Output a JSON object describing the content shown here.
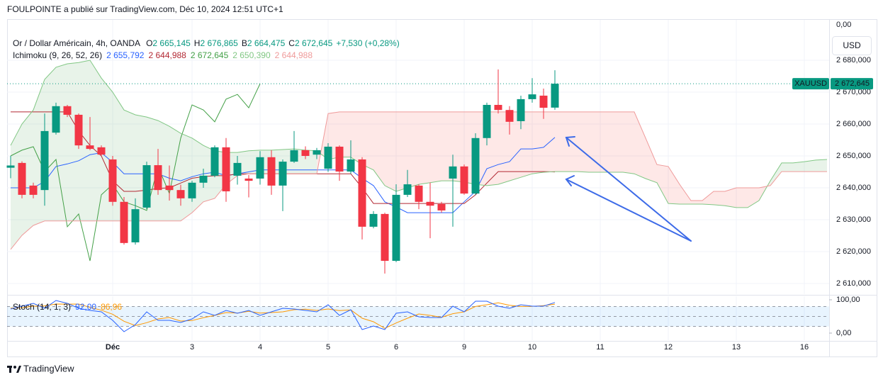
{
  "header": {
    "publisher": "FOULPOINTE a publié sur TradingView.com, Déc 10, 2024 12:51 UTC+1",
    "currency_button": "USD",
    "price_axis_top": "0,00",
    "footer": "TradingView"
  },
  "chart_data": [
    {
      "type": "candlestick",
      "title": "Or / Dollar Américain, 4h, OANDA",
      "legend_values": [
        {
          "label": "O",
          "text": "2 665,145"
        },
        {
          "label": "H",
          "text": "2 676,865"
        },
        {
          "label": "B",
          "text": "2 664,475"
        },
        {
          "label": "C",
          "text": "2 672,645"
        }
      ],
      "change": "+7,530 (+0,28%)",
      "up_color": "#089981",
      "down_color": "#f23645",
      "x": [
        0,
        1,
        2,
        3,
        4,
        5,
        6,
        7,
        8,
        9,
        10,
        11,
        12,
        13,
        14,
        15,
        16,
        17,
        18,
        19,
        20,
        21,
        22,
        23,
        24,
        25,
        26,
        27,
        28,
        29,
        30,
        31,
        32,
        33,
        34,
        35,
        36,
        37,
        38,
        39,
        40,
        41,
        42,
        43,
        44,
        45,
        46,
        47,
        48
      ],
      "open": [
        2646.3,
        2647.8,
        2640.7,
        2639.3,
        2657.3,
        2665.6,
        2662.9,
        2653.3,
        2652.7,
        2648.9,
        2635.6,
        2622.9,
        2633.8,
        2647.1,
        2640.7,
        2639.3,
        2636.7,
        2641.6,
        2643.8,
        2652.7,
        2643.8,
        2642.9,
        2642.9,
        2649.6,
        2640.7,
        2648.2,
        2651.8,
        2650.4,
        2646,
        2652.9,
        2645.1,
        2648.9,
        2627.8,
        2631.8,
        2617.1,
        2637.8,
        2640.7,
        2635.6,
        2634.9,
        2642.9,
        2646.7,
        2638.2,
        2655.6,
        2666,
        2664.4,
        2660.9,
        2667.8,
        2668.9,
        2665.145
      ],
      "high": [
        2650,
        2648.3,
        2641.6,
        2663.3,
        2666.7,
        2666,
        2663.3,
        2662.2,
        2653.3,
        2650,
        2637.1,
        2636.7,
        2648.2,
        2652.2,
        2647,
        2641,
        2642.2,
        2646,
        2653.3,
        2655.6,
        2650,
        2644,
        2651.5,
        2651.8,
        2648.9,
        2657.8,
        2653,
        2652.5,
        2654,
        2653.3,
        2654.9,
        2649.6,
        2632.7,
        2632.2,
        2641.1,
        2645.6,
        2641.1,
        2641.6,
        2635.6,
        2650.4,
        2647.3,
        2657.1,
        2666.7,
        2677.1,
        2665.6,
        2668.9,
        2674.4,
        2671.1,
        2676.865
      ],
      "low": [
        2643,
        2636.7,
        2636.7,
        2634.4,
        2656.7,
        2662.2,
        2652.2,
        2651.8,
        2650,
        2634.4,
        2622.2,
        2622.2,
        2633.3,
        2637.8,
        2636,
        2634.4,
        2635.6,
        2640,
        2643.3,
        2635.6,
        2641,
        2637,
        2641,
        2637.8,
        2632.7,
        2647.8,
        2649,
        2649,
        2645,
        2642.2,
        2644.4,
        2623.8,
        2627.3,
        2613.1,
        2616.7,
        2637.1,
        2633.3,
        2624.2,
        2632.2,
        2627.8,
        2637.8,
        2637.8,
        2653.3,
        2663.3,
        2656.7,
        2658.4,
        2666.7,
        2661.6,
        2664.475
      ],
      "close": [
        2647,
        2637.8,
        2637.8,
        2657.8,
        2665.6,
        2662.9,
        2653.3,
        2652.2,
        2650.4,
        2635.6,
        2622.7,
        2633.3,
        2647.1,
        2639.3,
        2639.3,
        2636.7,
        2641.6,
        2643.8,
        2652.7,
        2638.9,
        2647.8,
        2642.2,
        2649.6,
        2640.7,
        2648.2,
        2651.8,
        2650,
        2651.8,
        2652.9,
        2645.1,
        2648.9,
        2627.8,
        2631.8,
        2617.1,
        2637.8,
        2641.1,
        2635.6,
        2634.4,
        2632.9,
        2646.7,
        2638.2,
        2655.6,
        2666,
        2664.4,
        2660.7,
        2667.8,
        2669.3,
        2665.1,
        2672.645
      ],
      "xlim": [
        -0.3125,
        72.1875
      ],
      "xticks": [
        {
          "value": 9,
          "label": "Déc"
        },
        {
          "value": 16,
          "label": "3"
        },
        {
          "value": 22,
          "label": "4"
        },
        {
          "value": 28,
          "label": "5"
        },
        {
          "value": 34,
          "label": "6"
        },
        {
          "value": 40,
          "label": "9"
        },
        {
          "value": 46,
          "label": "10"
        },
        {
          "value": 52,
          "label": "11"
        },
        {
          "value": 58,
          "label": "12"
        },
        {
          "value": 64,
          "label": "13"
        },
        {
          "value": 70,
          "label": "16"
        }
      ],
      "ylim": [
        2606.667,
        2692.667
      ],
      "yticks": [
        {
          "value": 2610,
          "label": "2 610,000"
        },
        {
          "value": 2620,
          "label": "2 620,000"
        },
        {
          "value": 2630,
          "label": "2 630,000"
        },
        {
          "value": 2640,
          "label": "2 640,000"
        },
        {
          "value": 2650,
          "label": "2 650,000"
        },
        {
          "value": 2660,
          "label": "2 660,000"
        },
        {
          "value": 2670,
          "label": "2 670,000"
        },
        {
          "value": 2680,
          "label": "2 680,000"
        }
      ],
      "grid": true,
      "last_price": {
        "symbol": "XAUUSD",
        "value": 2672.645,
        "label": "2 672,645",
        "color": "#089981"
      },
      "indicator": {
        "name": "Ichimoku (9, 26, 52, 26)",
        "legend_values": [
          "2 655,792",
          "2 644,988",
          "2 672,645",
          "2 650,390",
          "2 644,988"
        ],
        "cloud_up_color": "rgba(67,160,71,0.12)",
        "cloud_down_color": "rgba(244,67,54,0.12)",
        "x": [
          0,
          1,
          2,
          3,
          4,
          5,
          6,
          7,
          8,
          9,
          10,
          11,
          12,
          13,
          14,
          15,
          16,
          17,
          18,
          19,
          20,
          21,
          22,
          23,
          24,
          25,
          26,
          27,
          28,
          29,
          30,
          31,
          32,
          33,
          34,
          35,
          36,
          37,
          38,
          39,
          40,
          41,
          42,
          43,
          44,
          45,
          46,
          47,
          48,
          49,
          50,
          51,
          52,
          53,
          54,
          55,
          56,
          57,
          58,
          59,
          60,
          61,
          62,
          63,
          64,
          65,
          66,
          67,
          68,
          69,
          70,
          71,
          72
        ],
        "series": [
          {
            "color": "#2962ff",
            "values": [
              2640,
              2640,
              2640,
              2642,
              2646.7,
              2647.5,
              2648.5,
              2650.4,
              2651,
              2648,
              2644.4,
              2644.4,
              2644.4,
              2644.4,
              2643,
              2642.2,
              2643.5,
              2644.4,
              2644.9,
              2643.8,
              2644.4,
              2645,
              2645.6,
              2645.6,
              2645.6,
              2645.6,
              2645.6,
              2645.6,
              2645.6,
              2645.6,
              2645.6,
              2643,
              2640.7,
              2635.6,
              2634,
              2632.2,
              2632.2,
              2632.2,
              2632.2,
              2632.2,
              2635.6,
              2638.9,
              2646,
              2647.3,
              2648.2,
              2652.2,
              2652.2,
              2652.7,
              2655.792,
              null,
              null,
              null,
              null,
              null,
              null,
              null,
              null,
              null,
              null,
              null,
              null,
              null,
              null,
              null,
              null,
              null,
              null,
              null,
              null,
              null,
              null,
              null,
              null
            ]
          },
          {
            "color": "#b22833",
            "values": [
              2663.8,
              2663.8,
              2663.8,
              2663.8,
              2663.8,
              2663.8,
              2657.8,
              2653.3,
              2650,
              2642.2,
              2638.9,
              2638.9,
              2639.3,
              2639.8,
              2640,
              2641.5,
              2643,
              2643.5,
              2643.8,
              2643.8,
              2644.4,
              2644.4,
              2644.4,
              2644.4,
              2644.4,
              2644.4,
              2644.4,
              2644.4,
              2644.4,
              2644.4,
              2644.4,
              2640,
              2635.1,
              2635.1,
              2635.1,
              2635.1,
              2635.1,
              2635.1,
              2635.1,
              2635.1,
              2635.1,
              2637.8,
              2641.5,
              2645.1,
              2645.1,
              2645.1,
              2645.1,
              2645.1,
              2644.988,
              null,
              null,
              null,
              null,
              null,
              null,
              null,
              null,
              null,
              null,
              null,
              null,
              null,
              null,
              null,
              null,
              null,
              null,
              null,
              null,
              null,
              null,
              null,
              null
            ]
          },
          {
            "color": "#43a047",
            "values": [
              2650,
              2651.8,
              2652.9,
              2645.1,
              2648.9,
              2627.8,
              2631.8,
              2617.1,
              2637.8,
              2641.1,
              2635.6,
              2634.4,
              2632.9,
              2646.7,
              2638.2,
              2655.6,
              2666,
              2664.4,
              2660.7,
              2667.8,
              2669.3,
              2665.1,
              2672.645,
              null,
              null,
              null,
              null,
              null,
              null,
              null,
              null,
              null,
              null,
              null,
              null,
              null,
              null,
              null,
              null,
              null,
              null,
              null,
              null,
              null,
              null,
              null,
              null,
              null,
              null,
              null,
              null,
              null,
              null,
              null,
              null,
              null,
              null,
              null,
              null,
              null,
              null,
              null,
              null,
              null,
              null,
              null,
              null,
              null,
              null,
              null,
              null,
              null,
              null
            ]
          },
          {
            "color": "#81c784",
            "values": [
              2653.3,
              2660,
              2664.4,
              2674,
              2677.8,
              2678.9,
              2679.3,
              2680,
              2674.4,
              2670,
              2664.4,
              2662.9,
              2662.2,
              2661.1,
              2659.3,
              2657.1,
              2655.6,
              2653.3,
              2651.6,
              2651.1,
              2651.1,
              2651.6,
              2651.8,
              2651.8,
              2652,
              2652.2,
              2651.8,
              2651.6,
              2648.9,
              2649.6,
              2649.6,
              2647.3,
              2645.6,
              2640.7,
              2638.9,
              2640,
              2641.1,
              2641.6,
              2642.2,
              2642.2,
              2641.8,
              2641.1,
              2640.7,
              2641.1,
              2642.2,
              2643.3,
              2644.4,
              2644.9,
              2645.1,
              2645.1,
              2645.1,
              2644.9,
              2644.9,
              2644.9,
              2644.9,
              2644.4,
              2642.9,
              2641.6,
              2635.1,
              2634.9,
              2634.9,
              2634.9,
              2634.7,
              2634.4,
              2633.8,
              2633.8,
              2636,
              2642.2,
              2647.8,
              2647.8,
              2648.2,
              2648.7,
              2648.9
            ]
          },
          {
            "color": "#ef9a9a",
            "values": [
              2620.7,
              2625.1,
              2628.2,
              2629.6,
              2629.6,
              2629.6,
              2629.6,
              2629.6,
              2629.6,
              2629.6,
              2629.6,
              2629.6,
              2629.6,
              2629.6,
              2629.6,
              2629.6,
              2632.2,
              2635.6,
              2636.7,
              2641.1,
              2643.8,
              2644.4,
              2644.4,
              2644.4,
              2644.4,
              2644.4,
              2644.4,
              2644.4,
              2663.3,
              2663.8,
              2663.8,
              2663.8,
              2663.8,
              2663.8,
              2663.8,
              2663.8,
              2663.8,
              2663.8,
              2663.8,
              2663.8,
              2663.8,
              2663.8,
              2663.8,
              2663.8,
              2663.8,
              2663.8,
              2663.8,
              2663.8,
              2663.8,
              2663.8,
              2663.8,
              2663.8,
              2663.8,
              2663.8,
              2663.8,
              2663.8,
              2655.6,
              2647.3,
              2646.7,
              2641.1,
              2636,
              2636,
              2638.9,
              2638.9,
              2640,
              2640,
              2640,
              2640.7,
              2645.1,
              2645.1,
              2645.1,
              2645.1,
              2645.1
            ]
          }
        ]
      }
    },
    {
      "type": "line",
      "title": "Stoch (14, 1, 3)",
      "legend_values": [
        "92,00",
        "86,96"
      ],
      "x": [
        0,
        1,
        2,
        3,
        4,
        5,
        6,
        7,
        8,
        9,
        10,
        11,
        12,
        13,
        14,
        15,
        16,
        17,
        18,
        19,
        20,
        21,
        22,
        23,
        24,
        25,
        26,
        27,
        28,
        29,
        30,
        31,
        32,
        33,
        34,
        35,
        36,
        37,
        38,
        39,
        40,
        41,
        42,
        43,
        44,
        45,
        46,
        47,
        48
      ],
      "series": [
        {
          "color": "#2962ff",
          "values": [
            72.3,
            80.9,
            89.4,
            74.5,
            97.9,
            89.4,
            74.5,
            68.1,
            63.8,
            38.3,
            4.3,
            25.5,
            63.8,
            38.3,
            38.3,
            31.9,
            42.6,
            63.8,
            53.2,
            68.1,
            59.6,
            68.1,
            53.2,
            63.8,
            74.5,
            72.3,
            68.1,
            63.8,
            85.1,
            53.2,
            70.2,
            10.6,
            21.3,
            10.6,
            59.6,
            63.8,
            48.9,
            46.8,
            46.8,
            80.9,
            63.8,
            95.7,
            95.7,
            80.9,
            74.5,
            85.1,
            80.9,
            80.9,
            92
          ]
        },
        {
          "color": "#ff9800",
          "values": [
            75,
            76,
            80.9,
            81.6,
            87.3,
            87.1,
            87.3,
            77.3,
            68.8,
            56.7,
            35.5,
            22.7,
            31.2,
            42.5,
            46.8,
            36.2,
            37.6,
            46.1,
            53.2,
            61.7,
            60.3,
            65.3,
            60.3,
            61.7,
            63.8,
            70.2,
            71.6,
            68.1,
            72.3,
            67.4,
            69.5,
            44.7,
            34,
            14.2,
            30.5,
            44.7,
            57.4,
            53.2,
            47.5,
            58.2,
            63.8,
            80.1,
            85.1,
            90.8,
            83.7,
            80.1,
            80.2,
            82.3,
            86.96
          ]
        }
      ],
      "ylim": [
        -21.28,
        110.64
      ],
      "yticks": [
        {
          "value": 0,
          "label": "0,00"
        },
        {
          "value": 100,
          "label": "100,00"
        }
      ],
      "bands": [
        80,
        50,
        20
      ],
      "band_fill": "rgba(33,150,243,0.1)"
    }
  ]
}
